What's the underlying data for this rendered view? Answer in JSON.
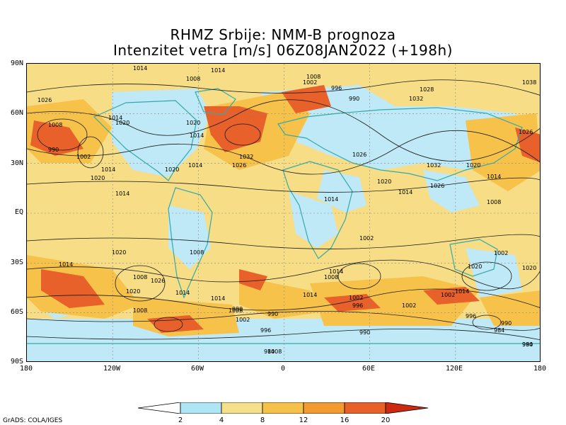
{
  "title_line1": "RHMZ Srbije: NMM-B prognoza",
  "title_line2": "Intenzitet vetra [m/s] 06Z08JAN2022 (+198h)",
  "lat_labels": [
    "90N",
    "60N",
    "30N",
    "EQ",
    "30S",
    "60S",
    "90S"
  ],
  "lon_labels": [
    "180",
    "120W",
    "60W",
    "0",
    "60E",
    "120E",
    "180"
  ],
  "colorbar": {
    "ticks": [
      "2",
      "4",
      "8",
      "12",
      "16",
      "20"
    ],
    "colors": [
      "#ffffff",
      "#aee6f5",
      "#f5e08c",
      "#f7c24a",
      "#f39a32",
      "#e8602a",
      "#cc2a10"
    ]
  },
  "pressure_labels": [
    "1014",
    "1008",
    "1014",
    "1008",
    "1002",
    "996",
    "990",
    "1028",
    "1032",
    "1038",
    "1026",
    "1020",
    "1014",
    "1008",
    "1002",
    "990",
    "1020",
    "1014",
    "1032",
    "1026",
    "1014",
    "1020",
    "1014",
    "1014",
    "1020",
    "1026",
    "1020",
    "1032",
    "1026",
    "1020",
    "1014",
    "1008",
    "1014",
    "1014",
    "1002",
    "1020",
    "1008",
    "1026",
    "1014",
    "1002",
    "1020",
    "1014",
    "1008",
    "1014",
    "1002",
    "1008",
    "1002",
    "1014",
    "1020",
    "1014",
    "1008",
    "996",
    "990",
    "984",
    "990",
    "996",
    "1002",
    "1008",
    "990",
    "984",
    "990",
    "984",
    "990",
    "996",
    "1002",
    "1008",
    "1014",
    "1020",
    "1026"
  ],
  "credit": "GrADS: COLA/IGES"
}
